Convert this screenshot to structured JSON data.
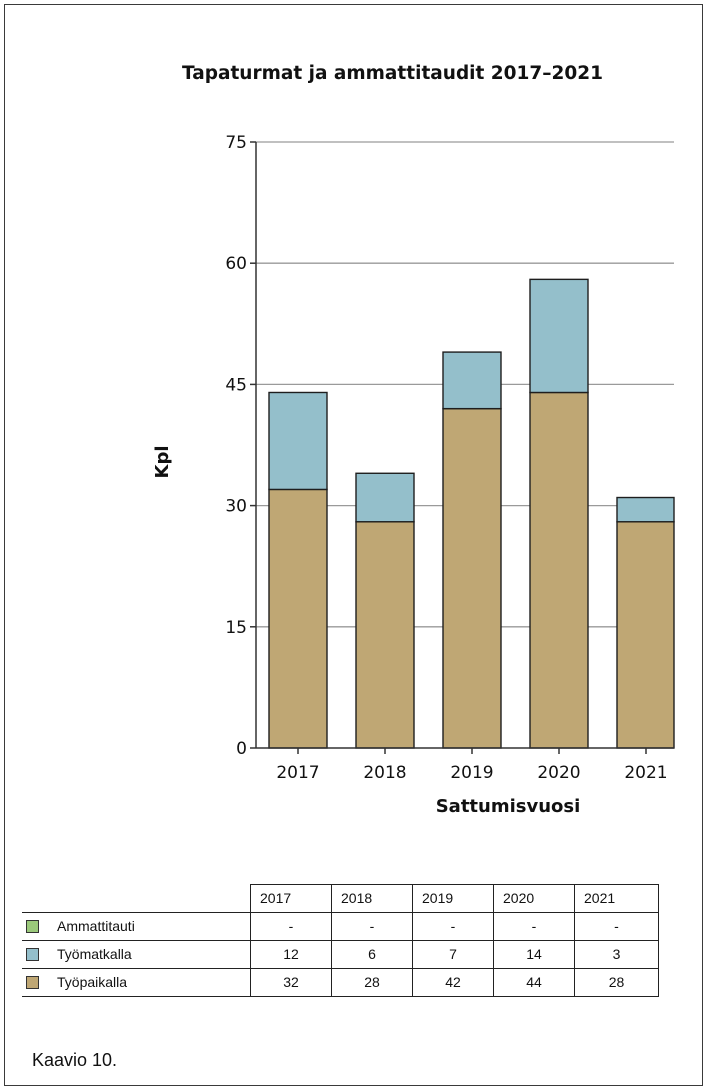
{
  "chart_data": {
    "type": "bar",
    "stacked": true,
    "title": "Tapaturmat ja ammattitaudit 2017–2021",
    "xlabel": "Sattumisvuosi",
    "ylabel": "Kpl",
    "categories": [
      "2017",
      "2018",
      "2019",
      "2020",
      "2021"
    ],
    "ylim": [
      0,
      75
    ],
    "yticks": [
      "0",
      "15",
      "30",
      "45",
      "60",
      "75"
    ],
    "grid": true,
    "series": [
      {
        "name": "Ammattitauti",
        "values": [
          0,
          0,
          0,
          0,
          0
        ],
        "display": [
          "-",
          "-",
          "-",
          "-",
          "-"
        ],
        "color": "#9bc97b"
      },
      {
        "name": "Työmatkalla",
        "values": [
          12,
          6,
          7,
          14,
          3
        ],
        "display": [
          "12",
          "6",
          "7",
          "14",
          "3"
        ],
        "color": "#94bfcb"
      },
      {
        "name": "Työpaikalla",
        "values": [
          32,
          28,
          42,
          44,
          28
        ],
        "display": [
          "32",
          "28",
          "42",
          "44",
          "28"
        ],
        "color": "#bfa774"
      }
    ]
  },
  "caption": "Kaavio 10."
}
